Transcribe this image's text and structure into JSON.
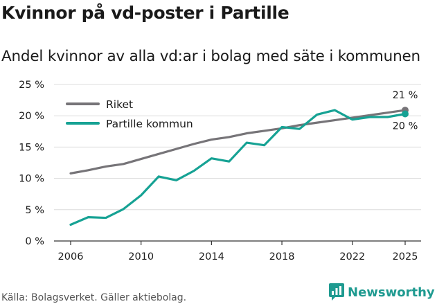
{
  "header": {
    "title": "Kvinnor på vd-poster i Partille",
    "subtitle": "Andel kvinnor av alla vd:ar i bolag med säte i kommunen"
  },
  "footer": {
    "source": "Källa: Bolagsverket. Gäller aktiebolag.",
    "brand": "Newsworthy"
  },
  "colors": {
    "riket": "#767478",
    "partille": "#16a294",
    "grid": "#dcdcdc",
    "axis": "#333333",
    "brand": "#1e9a90"
  },
  "chart_data": {
    "type": "line",
    "title": "Kvinnor på vd-poster i Partille",
    "subtitle": "Andel kvinnor av alla vd:ar i bolag med säte i kommunen",
    "xlabel": "",
    "ylabel": "",
    "xlim": [
      2006,
      2025
    ],
    "ylim": [
      0,
      25
    ],
    "x_ticks": [
      2006,
      2010,
      2014,
      2018,
      2022,
      2025
    ],
    "x_tick_labels": [
      "2006",
      "2010",
      "2014",
      "2018",
      "2022",
      "2025"
    ],
    "y_ticks": [
      0,
      5,
      10,
      15,
      20,
      25
    ],
    "y_tick_labels": [
      "0 %",
      "5 %",
      "10 %",
      "15 %",
      "20 %",
      "25 %"
    ],
    "grid": "horizontal",
    "legend": "top-left",
    "x": [
      2006,
      2007,
      2008,
      2009,
      2010,
      2011,
      2012,
      2013,
      2014,
      2015,
      2016,
      2017,
      2018,
      2019,
      2020,
      2021,
      2022,
      2023,
      2024,
      2025
    ],
    "series": [
      {
        "name": "Riket",
        "color": "#767478",
        "values": [
          10.8,
          11.3,
          11.9,
          12.3,
          13.1,
          13.9,
          14.7,
          15.5,
          16.2,
          16.6,
          17.2,
          17.6,
          18.0,
          18.5,
          18.9,
          19.3,
          19.7,
          20.1,
          20.5,
          20.9
        ],
        "end_label": "21 %"
      },
      {
        "name": "Partille kommun",
        "color": "#16a294",
        "values": [
          2.6,
          3.8,
          3.7,
          5.1,
          7.3,
          10.3,
          9.7,
          11.2,
          13.2,
          12.7,
          15.7,
          15.3,
          18.2,
          17.9,
          20.2,
          20.9,
          19.4,
          19.8,
          19.8,
          20.3
        ],
        "end_label": "20 %"
      }
    ]
  }
}
